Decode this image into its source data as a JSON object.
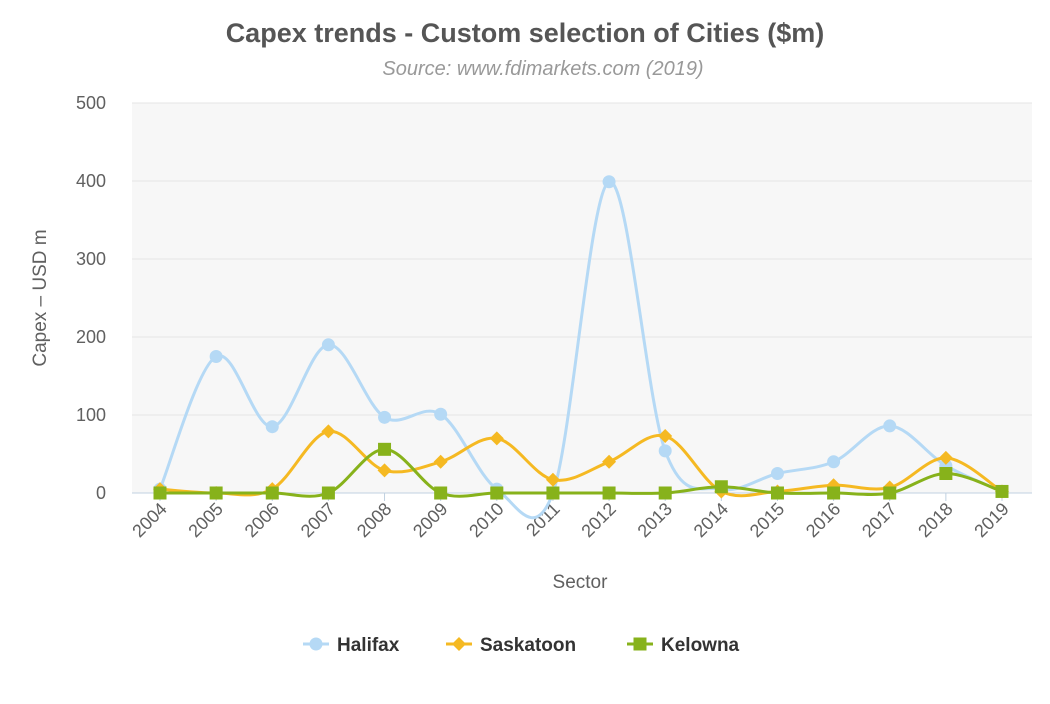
{
  "chart_data": {
    "type": "line",
    "title": "Capex trends - Custom selection of Cities ($m)",
    "subtitle": "Source: www.fdimarkets.com (2019)",
    "xlabel": "Sector",
    "ylabel": "Capex – USD m",
    "ylim": [
      0,
      500
    ],
    "yticks": [
      0,
      100,
      200,
      300,
      400,
      500
    ],
    "categories": [
      "2004",
      "2005",
      "2006",
      "2007",
      "2008",
      "2009",
      "2010",
      "2011",
      "2012",
      "2013",
      "2014",
      "2015",
      "2016",
      "2017",
      "2018",
      "2019"
    ],
    "grid": true,
    "legend_position": "bottom",
    "series": [
      {
        "name": "Halifax",
        "color": "#b5d9f5",
        "marker": "circle",
        "values": [
          5,
          175,
          85,
          190,
          97,
          101,
          5,
          0,
          399,
          54,
          5,
          25,
          40,
          86,
          35,
          2
        ]
      },
      {
        "name": "Saskatoon",
        "color": "#f5b922",
        "marker": "diamond",
        "values": [
          5,
          0,
          5,
          79,
          29,
          40,
          70,
          17,
          40,
          73,
          2,
          2,
          10,
          7,
          45,
          2
        ]
      },
      {
        "name": "Kelowna",
        "color": "#87b21b",
        "marker": "square",
        "values": [
          0,
          0,
          0,
          0,
          56,
          0,
          0,
          0,
          0,
          0,
          8,
          0,
          0,
          0,
          25,
          2
        ]
      }
    ]
  }
}
